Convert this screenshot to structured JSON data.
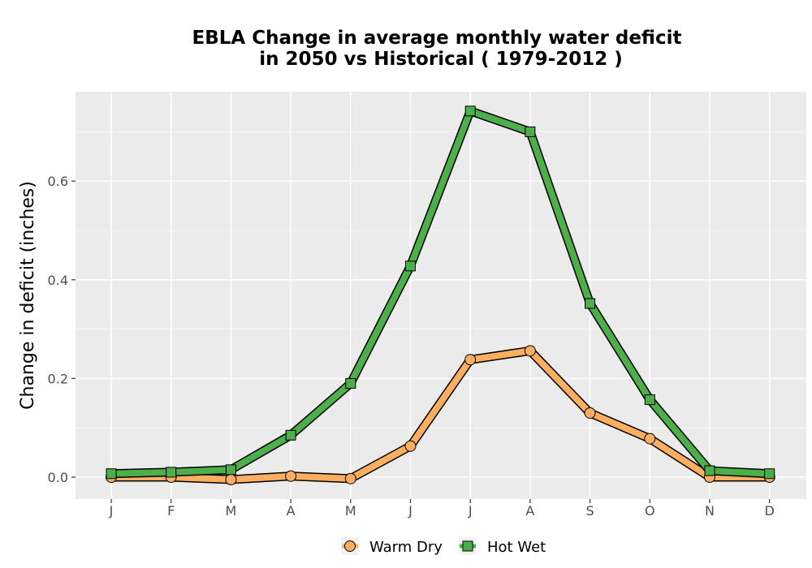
{
  "chart_data": {
    "type": "line",
    "title_lines": [
      "EBLA  Change in average monthly water deficit",
      "in 2050 vs Historical ( 1979-2012 )"
    ],
    "xlabel": "",
    "ylabel": "Change in deficit (inches)",
    "categories": [
      "J",
      "F",
      "M",
      "A",
      "M",
      "J",
      "J",
      "A",
      "S",
      "O",
      "N",
      "D"
    ],
    "yticks": [
      0.0,
      0.2,
      0.4,
      0.6
    ],
    "ytick_labels": [
      "0.0",
      "0.2",
      "0.4",
      "0.6"
    ],
    "ylim": [
      -0.04,
      0.78
    ],
    "grid": true,
    "legend_position": "bottom",
    "series": [
      {
        "name": "Warm Dry",
        "marker": "circle",
        "color": "#fdae61",
        "values": [
          0.0,
          0.0,
          -0.005,
          0.002,
          -0.003,
          0.063,
          0.238,
          0.256,
          0.13,
          0.078,
          0.0,
          0.0
        ]
      },
      {
        "name": "Hot Wet",
        "marker": "square",
        "color": "#4daf4a",
        "values": [
          0.007,
          0.01,
          0.015,
          0.085,
          0.19,
          0.428,
          0.742,
          0.7,
          0.352,
          0.157,
          0.013,
          0.007
        ]
      }
    ]
  }
}
